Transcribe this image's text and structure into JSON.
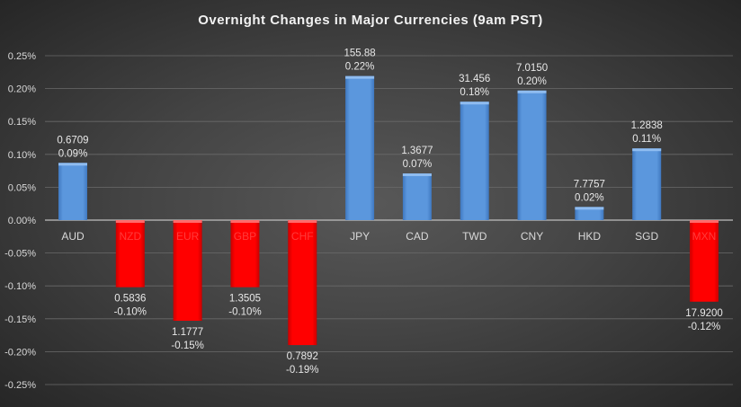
{
  "chart_data": {
    "type": "bar",
    "title": "Overnight Changes in Major Currencies (9am PST)",
    "xlabel": "",
    "ylabel": "",
    "ylim": [
      -0.25,
      0.25
    ],
    "yticks": [
      "0.25%",
      "0.20%",
      "0.15%",
      "0.10%",
      "0.05%",
      "0.00%",
      "-0.05%",
      "-0.10%",
      "-0.15%",
      "-0.20%",
      "-0.25%"
    ],
    "grid": true,
    "categories": [
      "AUD",
      "NZD",
      "EUR",
      "GBP",
      "CHF",
      "JPY",
      "CAD",
      "TWD",
      "CNY",
      "HKD",
      "SGD",
      "MXN"
    ],
    "values": [
      0.087,
      -0.102,
      -0.153,
      -0.102,
      -0.19,
      0.219,
      0.071,
      0.18,
      0.197,
      0.02,
      0.109,
      -0.124
    ],
    "price_labels": [
      "0.6709",
      "0.5836",
      "1.1777",
      "1.3505",
      "0.7892",
      "155.88",
      "1.3677",
      "31.456",
      "7.0150",
      "7.7757",
      "1.2838",
      "17.9200"
    ],
    "percent_labels": [
      "0.09%",
      "-0.10%",
      "-0.15%",
      "-0.10%",
      "-0.19%",
      "0.22%",
      "0.07%",
      "0.18%",
      "0.20%",
      "0.02%",
      "0.11%",
      "-0.12%"
    ],
    "colors": {
      "positive": "#5b97dd",
      "negative": "#ff0000",
      "negative_label": "#ff3b3b",
      "axis_label": "#d9d9d9"
    }
  }
}
